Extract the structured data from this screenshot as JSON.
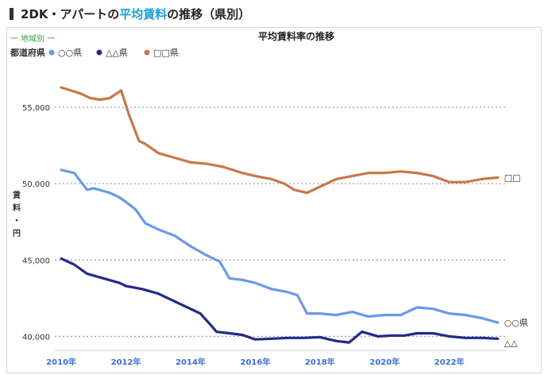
{
  "header": {
    "prefix": "2DK・アパートの",
    "highlight": "平均賃料",
    "suffix": "の推移（県別）"
  },
  "legend": {
    "group_label": "一 地域別 一",
    "prefecture_label": "都道府県"
  },
  "colors": {
    "accent": "#1a9fd8",
    "series": [
      "#6a9ae8",
      "#232a8a",
      "#c8784a"
    ]
  },
  "chart_data": {
    "type": "line",
    "title": "平均賃料率の推移",
    "ylabel": "賃\n料\n・\n円",
    "xlabel": "",
    "xlim": [
      2009.8,
      2023.8
    ],
    "ylim": [
      39500,
      57500
    ],
    "y_ticks": [
      40000,
      45000,
      50000,
      55000
    ],
    "y_tick_labels": [
      "40,000",
      "45,000",
      "50,000",
      "55,000"
    ],
    "x_ticks": [
      2010,
      2012,
      2014,
      2016,
      2018,
      2020,
      2022
    ],
    "x_tick_labels": [
      "2010年",
      "2012年",
      "2014年",
      "2016年",
      "2018年",
      "2020年",
      "2022年"
    ],
    "grid": "horizontal dotted",
    "legend_position": "top-left",
    "series": [
      {
        "name": "○○県",
        "end_label": "○○県",
        "color": "#6a9ae8",
        "x": [
          2010.0,
          2010.4,
          2010.8,
          2011.0,
          2011.5,
          2011.8,
          2012.0,
          2012.3,
          2012.6,
          2013.0,
          2013.5,
          2014.0,
          2014.5,
          2014.9,
          2015.2,
          2015.6,
          2016.0,
          2016.5,
          2017.0,
          2017.3,
          2017.6,
          2018.0,
          2018.5,
          2019.0,
          2019.5,
          2020.0,
          2020.5,
          2021.0,
          2021.5,
          2022.0,
          2022.5,
          2023.0,
          2023.5
        ],
        "values": [
          50900,
          50700,
          49600,
          49700,
          49400,
          49100,
          48800,
          48300,
          47400,
          47000,
          46600,
          45900,
          45300,
          44900,
          43800,
          43700,
          43500,
          43100,
          42900,
          42700,
          41500,
          41500,
          41400,
          41600,
          41300,
          41400,
          41400,
          41900,
          41800,
          41500,
          41400,
          41200,
          40900
        ]
      },
      {
        "name": "△△県",
        "end_label": "△△",
        "color": "#232a8a",
        "x": [
          2010.0,
          2010.4,
          2010.8,
          2011.3,
          2011.8,
          2012.0,
          2012.5,
          2013.0,
          2013.5,
          2014.0,
          2014.3,
          2014.6,
          2014.8,
          2015.2,
          2015.6,
          2016.0,
          2016.5,
          2017.0,
          2017.5,
          2018.0,
          2018.5,
          2018.9,
          2019.3,
          2019.8,
          2020.2,
          2020.6,
          2021.0,
          2021.5,
          2022.0,
          2022.5,
          2023.0,
          2023.5
        ],
        "values": [
          45100,
          44700,
          44100,
          43800,
          43500,
          43300,
          43100,
          42800,
          42300,
          41800,
          41500,
          40800,
          40300,
          40200,
          40100,
          39800,
          39850,
          39900,
          39900,
          39950,
          39700,
          39600,
          40300,
          40000,
          40050,
          40050,
          40200,
          40200,
          40000,
          39900,
          39900,
          39850
        ]
      },
      {
        "name": "□□県",
        "end_label": "□□",
        "color": "#c8784a",
        "x": [
          2010.0,
          2010.3,
          2010.6,
          2010.9,
          2011.2,
          2011.5,
          2011.85,
          2012.1,
          2012.4,
          2012.6,
          2013.0,
          2013.5,
          2014.0,
          2014.5,
          2015.0,
          2015.3,
          2015.6,
          2016.0,
          2016.5,
          2016.9,
          2017.2,
          2017.6,
          2018.0,
          2018.5,
          2019.0,
          2019.5,
          2020.0,
          2020.5,
          2021.0,
          2021.5,
          2022.0,
          2022.5,
          2023.0,
          2023.5
        ],
        "values": [
          56300,
          56100,
          55900,
          55600,
          55500,
          55600,
          56100,
          54500,
          52800,
          52600,
          52000,
          51700,
          51400,
          51300,
          51100,
          50900,
          50700,
          50500,
          50300,
          50000,
          49600,
          49400,
          49800,
          50300,
          50500,
          50700,
          50700,
          50800,
          50700,
          50500,
          50100,
          50100,
          50300,
          50400
        ]
      }
    ]
  }
}
